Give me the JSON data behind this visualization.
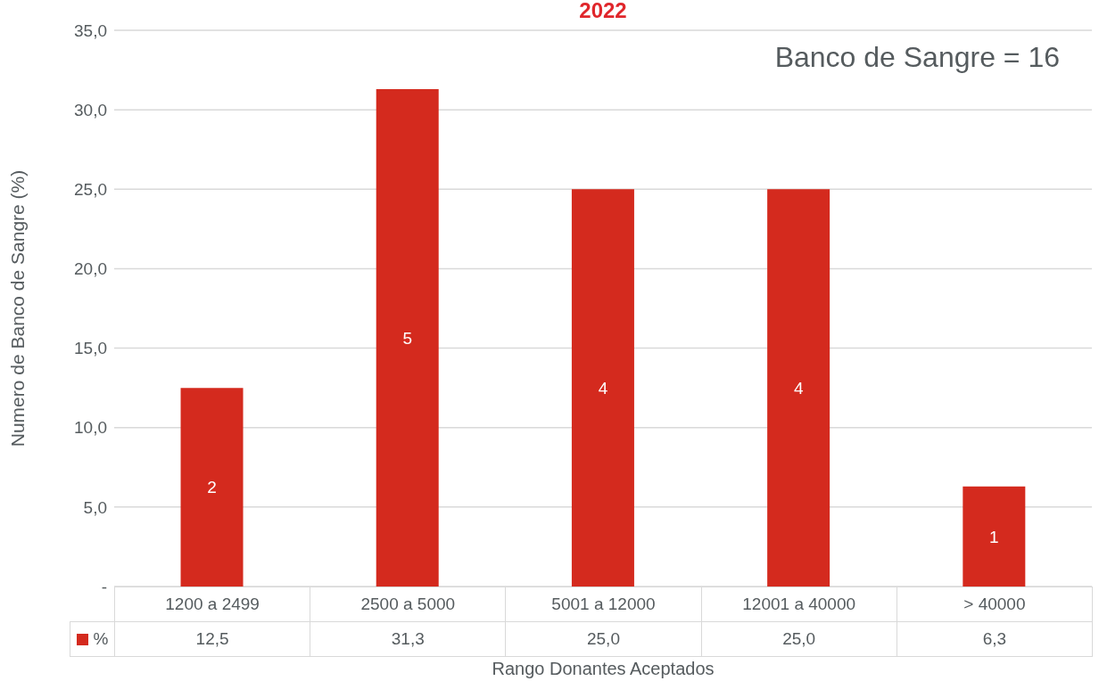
{
  "chart_data": {
    "type": "bar",
    "title": "2022",
    "xlabel": "Rango Donantes Aceptados",
    "ylabel": "Numero de  Banco de Sangre (%)",
    "categories": [
      "1200 a 2499",
      "2500 a 5000",
      "5001 a 12000",
      "12001 a 40000",
      "> 40000"
    ],
    "series": [
      {
        "name": "%",
        "color": "#d42a1e",
        "values": [
          12.5,
          31.3,
          25.0,
          25.0,
          6.3
        ],
        "value_labels": [
          "12,5",
          "31,3",
          "25,0",
          "25,0",
          "6,3"
        ]
      }
    ],
    "ylim": [
      0,
      35
    ],
    "yticks": [
      {
        "value": 0,
        "label": "-"
      },
      {
        "value": 5,
        "label": "5,0"
      },
      {
        "value": 10,
        "label": "10,0"
      },
      {
        "value": 15,
        "label": "15,0"
      },
      {
        "value": 20,
        "label": "20,0"
      },
      {
        "value": 25,
        "label": "25,0"
      },
      {
        "value": 30,
        "label": "30,0"
      },
      {
        "value": 35,
        "label": "35,0"
      }
    ],
    "grid": "y",
    "legend": "bottom",
    "annotations": [
      "Banco de Sangre = 16",
      "2",
      "5",
      "4",
      "4",
      "1"
    ]
  }
}
